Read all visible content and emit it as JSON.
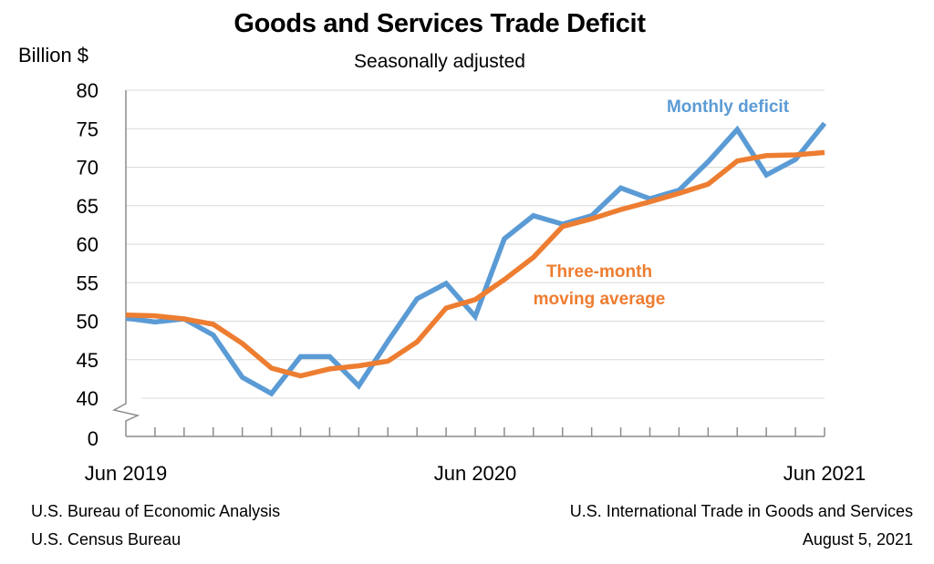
{
  "chart_data": {
    "type": "line",
    "title": "Goods and Services Trade Deficit",
    "subtitle": "Seasonally adjusted",
    "ylabel": "Billion $",
    "xlabel": "",
    "ylim": [
      40,
      80
    ],
    "y_break": true,
    "y_ticks": [
      "80",
      "75",
      "70",
      "65",
      "60",
      "55",
      "50",
      "45",
      "40"
    ],
    "y_tick_values": [
      80,
      75,
      70,
      65,
      60,
      55,
      50,
      45,
      40
    ],
    "y_zero_label": "0",
    "x_tick_labels": [
      {
        "index": 0,
        "label": "Jun 2019"
      },
      {
        "index": 12,
        "label": "Jun 2020"
      },
      {
        "index": 24,
        "label": "Jun 2021"
      }
    ],
    "x": [
      "Jun 2019",
      "Jul 2019",
      "Aug 2019",
      "Sep 2019",
      "Oct 2019",
      "Nov 2019",
      "Dec 2019",
      "Jan 2020",
      "Feb 2020",
      "Mar 2020",
      "Apr 2020",
      "May 2020",
      "Jun 2020",
      "Jul 2020",
      "Aug 2020",
      "Sep 2020",
      "Oct 2020",
      "Nov 2020",
      "Dec 2020",
      "Jan 2021",
      "Feb 2021",
      "Mar 2021",
      "Apr 2021",
      "May 2021",
      "Jun 2021"
    ],
    "grid": true,
    "series": [
      {
        "name": "Monthly deficit",
        "color": "#5b9bd5",
        "values": [
          50.4,
          49.9,
          50.3,
          48.2,
          42.7,
          40.6,
          45.4,
          45.4,
          41.6,
          47.4,
          52.9,
          54.9,
          50.6,
          60.7,
          63.7,
          62.6,
          63.7,
          67.3,
          65.9,
          67.0,
          70.7,
          74.9,
          69.0,
          71.0,
          75.7
        ]
      },
      {
        "name": "Three-month moving average",
        "color": "#ed7d31",
        "values": [
          50.8,
          50.7,
          50.3,
          49.6,
          47.1,
          43.9,
          42.9,
          43.8,
          44.2,
          44.8,
          47.3,
          51.7,
          52.8,
          55.4,
          58.3,
          62.3,
          63.3,
          64.5,
          65.5,
          66.6,
          67.8,
          70.8,
          71.5,
          71.6,
          71.9
        ]
      }
    ],
    "annotations": [
      {
        "text": "Monthly deficit",
        "series": 0
      },
      {
        "line1": "Three-month",
        "line2": "moving average",
        "series": 1
      }
    ]
  },
  "footer": {
    "left_line1": "U.S. Bureau of Economic Analysis",
    "left_line2": "U.S. Census Bureau",
    "right_line1": "U.S. International Trade in Goods and Services",
    "right_line2": "August 5, 2021"
  }
}
